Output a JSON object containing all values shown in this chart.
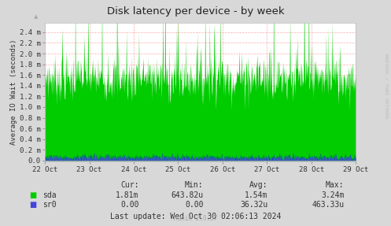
{
  "title": "Disk latency per device - by week",
  "ylabel": "Average IO Wait (seconds)",
  "background_color": "#d8d8d8",
  "plot_bg_color": "#ffffff",
  "grid_color": "#ff8888",
  "x_labels": [
    "22 Oct",
    "23 Oct",
    "24 Oct",
    "25 Oct",
    "26 Oct",
    "27 Oct",
    "28 Oct",
    "29 Oct"
  ],
  "y_tick_vals": [
    0.0,
    0.2,
    0.4,
    0.6,
    0.8,
    1.0,
    1.2,
    1.4,
    1.6,
    1.8,
    2.0,
    2.2,
    2.4
  ],
  "y_tick_labels": [
    "0.0",
    "0.2 m",
    "0.4 m",
    "0.6 m",
    "0.8 m",
    "1.0 m",
    "1.2 m",
    "1.4 m",
    "1.6 m",
    "1.8 m",
    "2.0 m",
    "2.2 m",
    "2.4 m"
  ],
  "sda_color": "#00cc00",
  "sr0_color": "#0000ff",
  "sr0_fill_color": "#4444dd",
  "watermark": "RRDTOOL / TOBI OETIKER",
  "sda_cur": "1.81m",
  "sda_min": "643.82u",
  "sda_avg": "1.54m",
  "sda_max": "3.24m",
  "sr0_cur": "0.00",
  "sr0_min": "0.00",
  "sr0_avg": "36.32u",
  "sr0_max": "463.33u",
  "last_update": "Last update: Wed Oct 30 02:06:13 2024",
  "munin_version": "Munin 2.0.57",
  "num_points": 700,
  "sda_mean": 1.54,
  "sda_std": 0.22,
  "sda_min_val": 0.95,
  "sda_spike_prob": 0.12,
  "sda_spike_scale": 0.5,
  "sr0_mean": 0.055,
  "sr0_std": 0.03,
  "sr0_max_clip": 0.13
}
